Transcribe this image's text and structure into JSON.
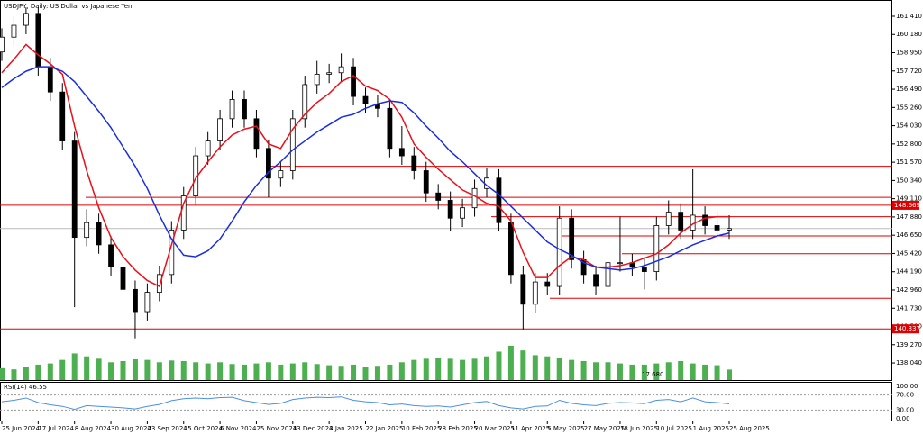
{
  "chart_data": [
    {
      "type": "candlestick",
      "title": "USDJPY, Daily:  US Dollar vs Japanese Yen",
      "categories": [
        "25 Jun 2024",
        null,
        null,
        "17 Jul 2024",
        null,
        null,
        "8 Aug 2024",
        null,
        null,
        "30 Aug 2024",
        null,
        null,
        "23 Sep 2024",
        null,
        null,
        "15 Oct 2024",
        null,
        null,
        "6 Nov 2024",
        null,
        null,
        "25 Nov 2024",
        null,
        null,
        "13 Dec 2024",
        null,
        null,
        "3 Jan 2025",
        null,
        null,
        "22 Jan 2025",
        null,
        null,
        "10 Feb 2025",
        null,
        null,
        "28 Feb 2025",
        null,
        null,
        "20 Mar 2025",
        null,
        null,
        "11 Apr 2025",
        null,
        null,
        "5 May 2025",
        null,
        null,
        "27 May 2025",
        null,
        null,
        "18 Jun 2025",
        null,
        null,
        "10 Jul 2025",
        null,
        null,
        "1 Aug 2025",
        null,
        null,
        "25 Aug 2025"
      ],
      "open": [
        159.0,
        160.0,
        160.8,
        161.6,
        158.0,
        156.3,
        153.0,
        146.5,
        147.5,
        146.0,
        144.5,
        143.0,
        141.5,
        142.8,
        144.0,
        147.0,
        149.3,
        152.0,
        153.0,
        154.5,
        155.8,
        154.5,
        152.5,
        150.5,
        151.0,
        154.5,
        156.8,
        157.5,
        157.6,
        158.0,
        156.0,
        155.5,
        155.2,
        152.5,
        152.0,
        151.0,
        149.5,
        149.0,
        147.8,
        148.5,
        149.8,
        150.5,
        147.5,
        144.0,
        142.0,
        143.5,
        143.2,
        147.8,
        145.0,
        144.0,
        143.2,
        144.8,
        144.8,
        144.5,
        144.2,
        147.3,
        148.2,
        147.0,
        148.0,
        147.3,
        147.0
      ],
      "high": [
        160.6,
        161.4,
        162.0,
        162.0,
        158.6,
        156.9,
        153.6,
        148.4,
        148.1,
        146.6,
        145.1,
        143.6,
        143.4,
        144.6,
        147.6,
        149.9,
        152.6,
        153.6,
        155.1,
        156.4,
        156.4,
        155.1,
        153.1,
        151.6,
        155.1,
        157.4,
        158.4,
        158.2,
        158.9,
        158.6,
        156.6,
        156.1,
        155.8,
        154.0,
        152.6,
        151.6,
        150.1,
        149.6,
        149.1,
        150.4,
        151.2,
        151.1,
        148.1,
        144.6,
        144.1,
        144.1,
        148.6,
        148.4,
        145.6,
        144.6,
        145.4,
        147.9,
        145.4,
        145.1,
        147.9,
        149.0,
        148.8,
        151.1,
        148.6,
        148.3,
        148.0
      ],
      "low": [
        158.4,
        159.4,
        160.2,
        157.4,
        155.7,
        152.4,
        141.8,
        145.9,
        145.4,
        143.9,
        142.4,
        139.7,
        140.9,
        142.2,
        143.4,
        146.4,
        148.7,
        151.4,
        152.4,
        153.9,
        153.9,
        151.9,
        149.2,
        149.9,
        150.4,
        153.9,
        156.2,
        156.9,
        157.0,
        155.4,
        154.9,
        154.6,
        151.9,
        151.4,
        150.4,
        148.9,
        148.4,
        146.9,
        147.2,
        147.9,
        149.2,
        146.9,
        143.4,
        140.3,
        141.4,
        142.6,
        142.6,
        144.4,
        143.4,
        142.6,
        142.6,
        144.2,
        143.9,
        143.0,
        143.6,
        146.7,
        146.4,
        146.4,
        146.7,
        146.4,
        146.4
      ],
      "close": [
        160.0,
        160.8,
        161.6,
        158.0,
        156.3,
        153.0,
        146.5,
        147.5,
        146.0,
        144.5,
        143.0,
        141.5,
        142.8,
        144.0,
        147.0,
        149.3,
        152.0,
        153.0,
        154.5,
        155.8,
        154.5,
        152.5,
        150.5,
        151.0,
        154.5,
        156.8,
        157.5,
        157.6,
        158.0,
        156.0,
        155.5,
        155.2,
        152.5,
        152.0,
        151.0,
        149.5,
        149.0,
        147.8,
        148.5,
        149.8,
        150.5,
        147.5,
        144.0,
        142.0,
        143.5,
        143.2,
        147.8,
        145.0,
        144.0,
        143.2,
        144.8,
        144.8,
        144.5,
        144.2,
        147.3,
        148.2,
        147.0,
        148.0,
        147.3,
        147.0,
        147.1
      ],
      "series": [
        {
          "color": "#e8101a",
          "values": [
            157.6,
            158.5,
            159.5,
            158.8,
            158.2,
            157.5,
            154.0,
            151.0,
            148.5,
            146.5,
            145.2,
            144.3,
            143.6,
            143.2,
            146.0,
            148.8,
            150.5,
            151.6,
            152.6,
            153.4,
            153.8,
            154.0,
            152.8,
            152.5,
            153.8,
            154.8,
            155.6,
            156.2,
            157.0,
            157.4,
            156.7,
            156.4,
            155.8,
            154.6,
            152.8,
            151.9,
            151.1,
            150.4,
            149.7,
            149.3,
            148.8,
            148.6,
            147.6,
            145.5,
            143.8,
            143.8,
            144.6,
            145.2,
            145.0,
            144.5,
            144.5,
            144.6,
            144.8,
            145.1,
            145.4,
            146.0,
            146.8,
            147.4,
            147.8,
            147.9,
            147.9
          ]
        },
        {
          "color": "#1a2ee0",
          "values": [
            156.6,
            157.2,
            157.7,
            158.0,
            158.0,
            157.7,
            157.0,
            156.0,
            155.0,
            153.9,
            152.6,
            151.3,
            149.8,
            148.0,
            146.4,
            145.3,
            145.2,
            145.6,
            146.4,
            147.6,
            148.9,
            150.0,
            150.9,
            151.6,
            152.4,
            153.0,
            153.6,
            154.1,
            154.6,
            154.8,
            155.2,
            155.5,
            155.7,
            155.6,
            154.9,
            154.0,
            153.2,
            152.3,
            151.6,
            150.8,
            150.0,
            149.4,
            148.6,
            147.8,
            147.0,
            146.2,
            145.7,
            145.3,
            144.8,
            144.5,
            144.4,
            144.3,
            144.4,
            144.6,
            144.9,
            145.2,
            145.6,
            146.0,
            146.3,
            146.6,
            146.8
          ]
        }
      ],
      "volume": [
        20000,
        18000,
        22000,
        26000,
        28000,
        34000,
        45000,
        40000,
        36000,
        30000,
        32000,
        35000,
        34000,
        30000,
        33000,
        32000,
        30000,
        28000,
        30000,
        27000,
        26000,
        28000,
        30000,
        26000,
        28000,
        30000,
        27000,
        25000,
        24000,
        26000,
        22000,
        24000,
        26000,
        30000,
        34000,
        36000,
        38000,
        36000,
        34000,
        36000,
        40000,
        48000,
        58000,
        50000,
        42000,
        40000,
        38000,
        34000,
        32000,
        30000,
        30000,
        28000,
        26000,
        26000,
        28000,
        30000,
        32000,
        28000,
        26000,
        25000,
        17680
      ],
      "volume_color": "#4caf50",
      "volume_label": "17 680",
      "y2lim": [
        0,
        70000
      ],
      "levels": [
        151.3,
        149.2,
        147.9,
        146.6,
        145.4,
        142.4
      ],
      "marked_levels": [
        148.669,
        140.337
      ],
      "level_color": "#e00000",
      "ylim": [
        136.89,
        162.38
      ],
      "yticks": [
        {
          "value": 161.41,
          "label": "161.410"
        },
        {
          "value": 160.18,
          "label": "160.180"
        },
        {
          "value": 158.95,
          "label": "158.950"
        },
        {
          "value": 157.72,
          "label": "157.720"
        },
        {
          "value": 156.49,
          "label": "156.490"
        },
        {
          "value": 155.26,
          "label": "155.260"
        },
        {
          "value": 154.03,
          "label": "154.030"
        },
        {
          "value": 152.8,
          "label": "152.800"
        },
        {
          "value": 151.57,
          "label": "151.570"
        },
        {
          "value": 150.34,
          "label": "150.340"
        },
        {
          "value": 149.11,
          "label": "149.110"
        },
        {
          "value": 147.88,
          "label": "147.880"
        },
        {
          "value": 146.65,
          "label": "146.650"
        },
        {
          "value": 145.42,
          "label": "145.420"
        },
        {
          "value": 144.19,
          "label": "144.190"
        },
        {
          "value": 142.96,
          "label": "142.960"
        },
        {
          "value": 141.73,
          "label": "141.730"
        },
        {
          "value": 140.5,
          "label": "140.500"
        },
        {
          "value": 139.27,
          "label": "139.270"
        },
        {
          "value": 138.04,
          "label": "138.040"
        }
      ]
    },
    {
      "type": "line",
      "title": "RSI(14) 46.55",
      "color": "#4a90e2",
      "values": [
        52,
        56,
        62,
        50,
        44,
        40,
        32,
        42,
        40,
        38,
        36,
        33,
        40,
        45,
        55,
        60,
        62,
        60,
        63,
        64,
        55,
        50,
        45,
        48,
        58,
        62,
        64,
        63,
        65,
        56,
        52,
        50,
        44,
        46,
        42,
        40,
        41,
        38,
        44,
        50,
        53,
        42,
        36,
        33,
        40,
        41,
        56,
        48,
        44,
        42,
        48,
        50,
        49,
        47,
        56,
        58,
        52,
        62,
        52,
        50,
        46.55
      ],
      "ylim": [
        0,
        100
      ],
      "yticks": [
        {
          "value": 100,
          "label": "100.00"
        },
        {
          "value": 70,
          "label": "70.00"
        },
        {
          "value": 30,
          "label": "30.00"
        },
        {
          "value": 0,
          "label": "0.00"
        }
      ]
    }
  ]
}
